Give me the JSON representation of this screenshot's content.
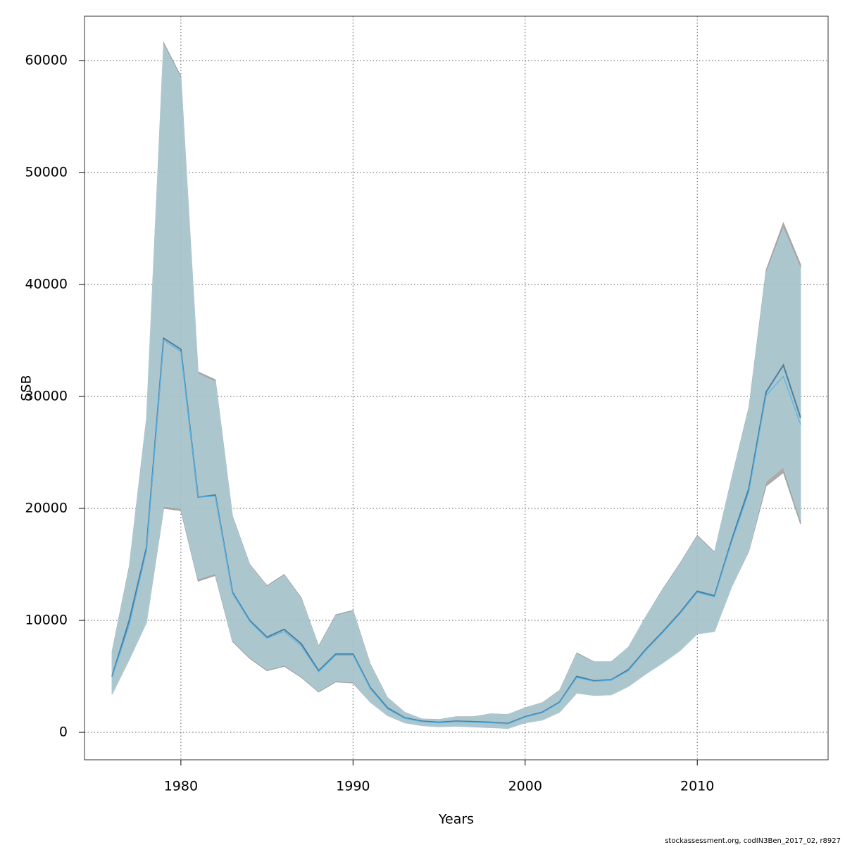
{
  "chart_data": {
    "type": "line",
    "xlabel": "Years",
    "ylabel": "SSB",
    "footnote": "stockassessment.org, codIN3Ben_2017_02, r8927",
    "grid": true,
    "x": [
      1976,
      1977,
      1978,
      1979,
      1980,
      1981,
      1982,
      1983,
      1984,
      1985,
      1986,
      1987,
      1988,
      1989,
      1990,
      1991,
      1992,
      1993,
      1994,
      1995,
      1996,
      1997,
      1998,
      1999,
      2000,
      2001,
      2002,
      2003,
      2004,
      2005,
      2006,
      2007,
      2008,
      2009,
      2010,
      2011,
      2012,
      2013,
      2014,
      2015,
      2016
    ],
    "xlim": [
      1974.4,
      2017.6
    ],
    "xticks": [
      1980,
      1990,
      2000,
      2010
    ],
    "ylim": [
      -2450,
      63960
    ],
    "yticks": [
      0,
      10000,
      20000,
      30000,
      40000,
      50000,
      60000
    ],
    "series": [
      {
        "color": "#4a7f9c",
        "band_color": "rgba(150,150,150,0.8)",
        "values": [
          5000,
          10000,
          16500,
          35200,
          34200,
          21000,
          21200,
          12500,
          10000,
          8500,
          9200,
          7900,
          5500,
          7000,
          7000,
          4000,
          2200,
          1300,
          1000,
          900,
          1000,
          950,
          900,
          800,
          1400,
          1800,
          2700,
          5000,
          4600,
          4700,
          5600,
          7400,
          9000,
          10700,
          12600,
          12200,
          17200,
          21800,
          30400,
          32800,
          28100
        ],
        "lower": [
          3400,
          6500,
          9800,
          20000,
          19800,
          13500,
          14000,
          8100,
          6600,
          5500,
          5900,
          4900,
          3600,
          4500,
          4400,
          2700,
          1500,
          850,
          600,
          500,
          550,
          480,
          420,
          350,
          850,
          1100,
          1800,
          3500,
          3300,
          3350,
          4100,
          5200,
          6200,
          7300,
          8800,
          9000,
          13000,
          16200,
          22000,
          23200,
          18600
        ],
        "upper": [
          7200,
          14800,
          28000,
          61600,
          58600,
          32200,
          31500,
          19300,
          15000,
          13100,
          14100,
          12000,
          7700,
          10500,
          10900,
          6100,
          3100,
          1800,
          1200,
          1150,
          1400,
          1400,
          1650,
          1600,
          2200,
          2650,
          3750,
          7100,
          6300,
          6300,
          7600,
          10300,
          12800,
          15100,
          17600,
          16100,
          22700,
          29000,
          41300,
          45500,
          41800
        ]
      },
      {
        "color": "#56b4e9",
        "band_color": "rgba(173,216,230,0.6)",
        "values": [
          4900,
          9600,
          16200,
          35000,
          34000,
          21000,
          21100,
          12400,
          9900,
          8400,
          9000,
          7700,
          5400,
          6900,
          6900,
          3900,
          2100,
          1250,
          950,
          850,
          950,
          900,
          850,
          750,
          1350,
          1750,
          2650,
          4900,
          4550,
          4650,
          5500,
          7300,
          8900,
          10600,
          12500,
          12100,
          17000,
          21500,
          30100,
          31800,
          27500
        ],
        "lower": [
          3400,
          6500,
          9800,
          20200,
          20000,
          13700,
          14200,
          8200,
          6700,
          5600,
          6000,
          5000,
          3700,
          4600,
          4500,
          2700,
          1500,
          850,
          600,
          500,
          550,
          480,
          420,
          350,
          850,
          1100,
          1800,
          3500,
          3300,
          3350,
          4100,
          5200,
          6200,
          7300,
          8800,
          9000,
          13000,
          16300,
          22400,
          23700,
          19000
        ],
        "upper": [
          7100,
          14600,
          27800,
          61400,
          58400,
          32000,
          31300,
          19200,
          14900,
          13000,
          14000,
          11900,
          7600,
          10400,
          10800,
          6000,
          3050,
          1780,
          1180,
          1130,
          1380,
          1380,
          1620,
          1580,
          2180,
          2620,
          3700,
          7000,
          6250,
          6250,
          7550,
          10250,
          12700,
          15000,
          17500,
          16000,
          22600,
          28800,
          41000,
          45000,
          41400
        ]
      }
    ]
  }
}
